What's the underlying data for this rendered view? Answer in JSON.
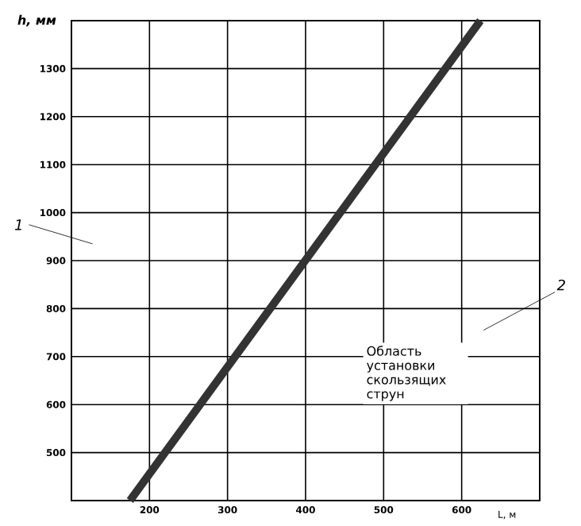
{
  "chart_data": {
    "type": "line",
    "xlabel": "L, м",
    "ylabel": "h, мм",
    "x": [
      175,
      624
    ],
    "series": [
      {
        "color": "#333333",
        "values": [
          400,
          1400
        ]
      }
    ],
    "xlim": [
      100,
      700
    ],
    "ylim": [
      400,
      1400
    ],
    "xticks": [
      200,
      300,
      400,
      500,
      600
    ],
    "yticks": [
      500,
      600,
      700,
      800,
      900,
      1000,
      1100,
      1200,
      1300
    ],
    "grid": true,
    "marker": "none",
    "line_style": "solid",
    "annotations": [
      "1",
      "2",
      "Область установки скользящих струн"
    ]
  }
}
